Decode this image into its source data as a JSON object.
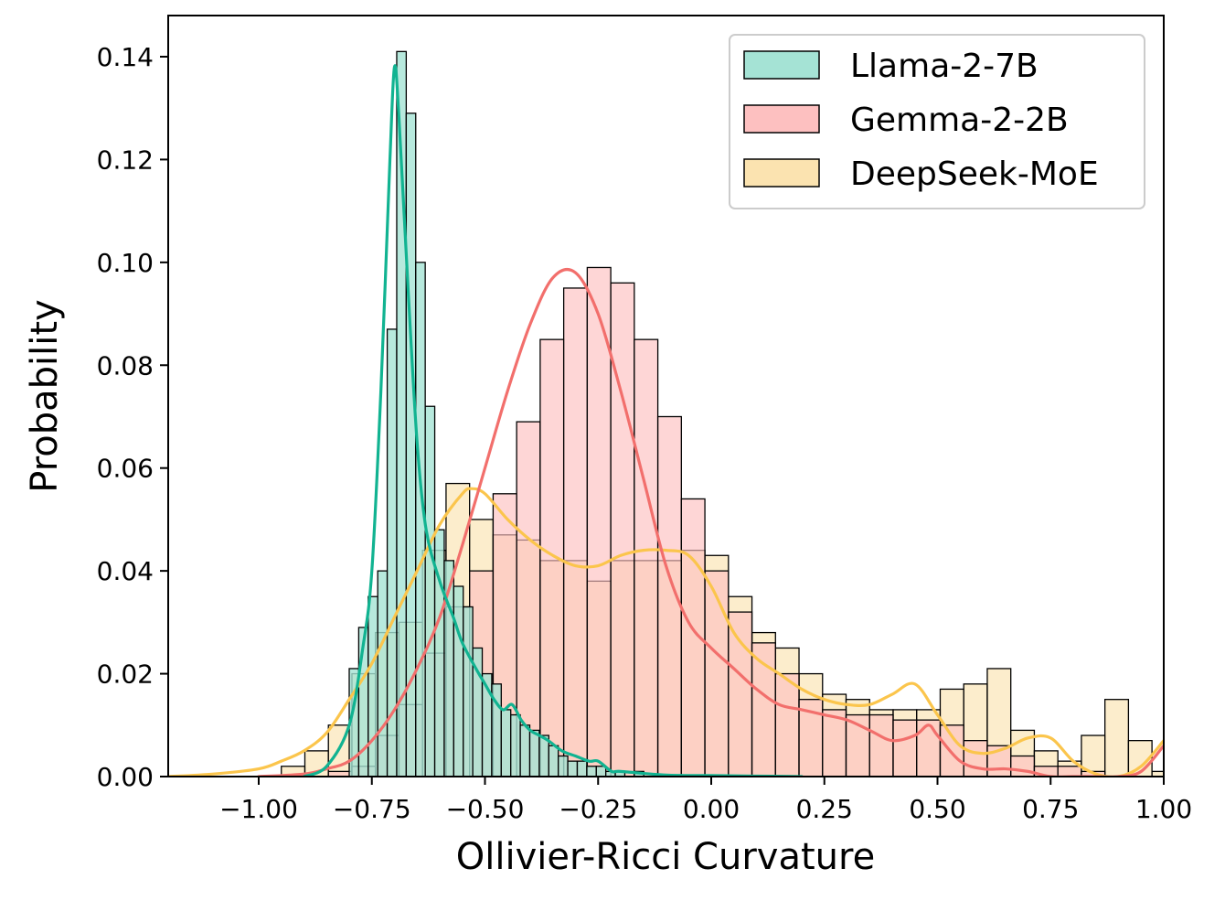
{
  "chart_data": {
    "type": "histogram",
    "xlabel": "Ollivier-Ricci Curvature",
    "ylabel": "Probability",
    "xlim": [
      -1.2,
      1.0
    ],
    "ylim": [
      0,
      0.148
    ],
    "x_ticks": [
      {
        "value": -1.0,
        "label": "−1.00"
      },
      {
        "value": -0.75,
        "label": "−0.75"
      },
      {
        "value": -0.5,
        "label": "−0.50"
      },
      {
        "value": -0.25,
        "label": "−0.25"
      },
      {
        "value": 0.0,
        "label": "0.00"
      },
      {
        "value": 0.25,
        "label": "0.25"
      },
      {
        "value": 0.5,
        "label": "0.50"
      },
      {
        "value": 0.75,
        "label": "0.75"
      },
      {
        "value": 1.0,
        "label": "1.00"
      }
    ],
    "y_ticks": [
      {
        "value": 0.0,
        "label": "0.00"
      },
      {
        "value": 0.02,
        "label": "0.02"
      },
      {
        "value": 0.04,
        "label": "0.04"
      },
      {
        "value": 0.06,
        "label": "0.06"
      },
      {
        "value": 0.08,
        "label": "0.08"
      },
      {
        "value": 0.1,
        "label": "0.10"
      },
      {
        "value": 0.12,
        "label": "0.12"
      },
      {
        "value": 0.14,
        "label": "0.14"
      }
    ],
    "grid": false,
    "legend_position": "top-right",
    "series": [
      {
        "name": "DeepSeek-MoE",
        "bar_color": "#fbe3b0",
        "bar_opacity": 0.65,
        "kde_color": "#fbc54c",
        "bin_start": -0.95,
        "bin_width": 0.052,
        "values": [
          0.002,
          0.005,
          0.01,
          0.02,
          0.028,
          0.03,
          0.044,
          0.057,
          0.05,
          0.047,
          0.046,
          0.042,
          0.042,
          0.038,
          0.042,
          0.042,
          0.042,
          0.044,
          0.043,
          0.035,
          0.028,
          0.025,
          0.02,
          0.016,
          0.015,
          0.013,
          0.013,
          0.013,
          0.017,
          0.018,
          0.021,
          0.009,
          0.005,
          0.003,
          0.008,
          0.015,
          0.007,
          0.001,
          0.001,
          0.0,
          0.012
        ],
        "kde_x": [
          -1.2,
          -1.1,
          -1.0,
          -0.95,
          -0.9,
          -0.85,
          -0.8,
          -0.75,
          -0.7,
          -0.65,
          -0.6,
          -0.55,
          -0.53,
          -0.5,
          -0.45,
          -0.4,
          -0.35,
          -0.3,
          -0.25,
          -0.2,
          -0.15,
          -0.1,
          -0.05,
          0.0,
          0.05,
          0.1,
          0.15,
          0.2,
          0.25,
          0.3,
          0.35,
          0.4,
          0.45,
          0.5,
          0.55,
          0.6,
          0.65,
          0.7,
          0.75,
          0.8,
          0.85,
          0.9,
          0.95,
          1.0
        ],
        "kde_y": [
          0.0,
          0.0005,
          0.0015,
          0.003,
          0.005,
          0.0085,
          0.015,
          0.022,
          0.031,
          0.04,
          0.049,
          0.055,
          0.056,
          0.055,
          0.05,
          0.046,
          0.043,
          0.041,
          0.041,
          0.043,
          0.044,
          0.044,
          0.043,
          0.037,
          0.028,
          0.023,
          0.02,
          0.017,
          0.015,
          0.014,
          0.014,
          0.016,
          0.018,
          0.012,
          0.006,
          0.0045,
          0.0055,
          0.0075,
          0.0075,
          0.003,
          0.0005,
          0.0,
          0.002,
          0.007
        ]
      },
      {
        "name": "Gemma-2-2B",
        "bar_color": "#fdc0c0",
        "bar_opacity": 0.65,
        "kde_color": "#f26f6c",
        "bin_start": -0.95,
        "bin_width": 0.052,
        "values": [
          0.0,
          0.0,
          0.001,
          0.002,
          0.008,
          0.014,
          0.024,
          0.033,
          0.04,
          0.055,
          0.069,
          0.085,
          0.095,
          0.099,
          0.096,
          0.085,
          0.07,
          0.054,
          0.04,
          0.032,
          0.026,
          0.02,
          0.015,
          0.013,
          0.012,
          0.012,
          0.011,
          0.011,
          0.01,
          0.007,
          0.006,
          0.004,
          0.002,
          0.002,
          0.001,
          0.0,
          0.0,
          0.0,
          0.0,
          0.0,
          0.009
        ],
        "kde_x": [
          -1.0,
          -0.9,
          -0.85,
          -0.8,
          -0.75,
          -0.7,
          -0.65,
          -0.6,
          -0.55,
          -0.5,
          -0.45,
          -0.4,
          -0.35,
          -0.3,
          -0.25,
          -0.2,
          -0.15,
          -0.1,
          -0.05,
          0.0,
          0.05,
          0.1,
          0.15,
          0.2,
          0.25,
          0.3,
          0.35,
          0.4,
          0.45,
          0.48,
          0.5,
          0.55,
          0.6,
          0.65,
          0.7,
          0.75,
          0.8,
          0.85,
          0.9,
          0.95,
          1.0
        ],
        "kde_y": [
          0.0,
          0.0005,
          0.0015,
          0.003,
          0.007,
          0.013,
          0.021,
          0.031,
          0.045,
          0.06,
          0.075,
          0.088,
          0.097,
          0.098,
          0.09,
          0.075,
          0.058,
          0.041,
          0.03,
          0.025,
          0.021,
          0.017,
          0.014,
          0.013,
          0.012,
          0.011,
          0.009,
          0.007,
          0.008,
          0.01,
          0.008,
          0.003,
          0.0015,
          0.0015,
          0.001,
          0.0,
          0.0,
          0.0,
          0.0,
          0.001,
          0.006
        ]
      },
      {
        "name": "Llama-2-7B",
        "bar_color": "#a5e3d5",
        "bar_opacity": 0.8,
        "kde_color": "#11b391",
        "bin_start": -0.8,
        "bin_width": 0.021,
        "values": [
          0.021,
          0.029,
          0.035,
          0.04,
          0.087,
          0.141,
          0.129,
          0.1,
          0.072,
          0.048,
          0.042,
          0.037,
          0.033,
          0.025,
          0.02,
          0.018,
          0.013,
          0.012,
          0.01,
          0.009,
          0.008,
          0.006,
          0.004,
          0.003,
          0.003,
          0.002,
          0.002,
          0.001,
          0.001,
          0.0,
          0.001,
          0.0
        ],
        "kde_x": [
          -0.9,
          -0.85,
          -0.8,
          -0.77,
          -0.75,
          -0.73,
          -0.71,
          -0.7,
          -0.69,
          -0.67,
          -0.65,
          -0.63,
          -0.6,
          -0.57,
          -0.55,
          -0.52,
          -0.5,
          -0.48,
          -0.46,
          -0.44,
          -0.42,
          -0.4,
          -0.38,
          -0.36,
          -0.33,
          -0.3,
          -0.27,
          -0.25,
          -0.22,
          -0.2,
          -0.1,
          0.0,
          0.1,
          0.2
        ],
        "kde_y": [
          0.0,
          0.002,
          0.01,
          0.025,
          0.04,
          0.075,
          0.12,
          0.138,
          0.128,
          0.095,
          0.065,
          0.048,
          0.038,
          0.031,
          0.026,
          0.021,
          0.018,
          0.015,
          0.013,
          0.014,
          0.011,
          0.009,
          0.008,
          0.007,
          0.005,
          0.004,
          0.003,
          0.003,
          0.001,
          0.001,
          0.0003,
          0.0002,
          0.0001,
          0.0
        ]
      }
    ],
    "legend": [
      {
        "name": "Llama-2-7B",
        "color": "#a5e3d5"
      },
      {
        "name": "Gemma-2-2B",
        "color": "#fdc0c0"
      },
      {
        "name": "DeepSeek-MoE",
        "color": "#fbe3b0"
      }
    ]
  }
}
